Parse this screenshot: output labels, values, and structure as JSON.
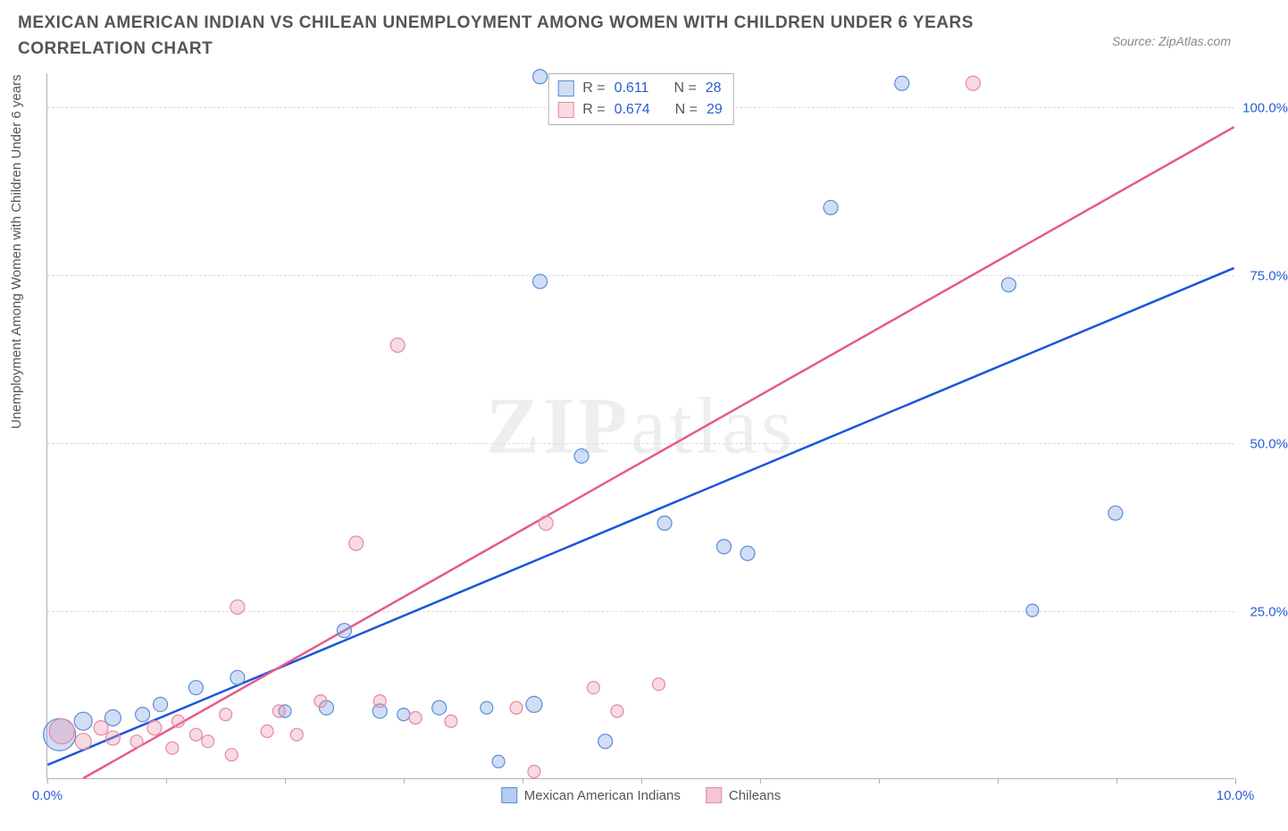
{
  "title": "MEXICAN AMERICAN INDIAN VS CHILEAN UNEMPLOYMENT AMONG WOMEN WITH CHILDREN UNDER 6 YEARS CORRELATION CHART",
  "source": "Source: ZipAtlas.com",
  "y_axis_label": "Unemployment Among Women with Children Under 6 years",
  "watermark_bold": "ZIP",
  "watermark_light": "atlas",
  "chart": {
    "type": "scatter",
    "background_color": "#ffffff",
    "grid_color": "#dcdcdc",
    "axis_color": "#b0b0b0",
    "tick_label_color": "#2b5cd6",
    "xlim": [
      0,
      10
    ],
    "ylim": [
      0,
      105
    ],
    "x_ticks": [
      0,
      1,
      2,
      3,
      4,
      5,
      6,
      7,
      8,
      9,
      10
    ],
    "x_tick_labels": {
      "0": "0.0%",
      "10": "10.0%"
    },
    "y_ticks": [
      25,
      50,
      75,
      100
    ],
    "y_tick_labels": {
      "25": "25.0%",
      "50": "50.0%",
      "75": "75.0%",
      "100": "100.0%"
    },
    "title_fontsize": 19,
    "label_fontsize": 15
  },
  "series": [
    {
      "name": "Mexican American Indians",
      "color_fill": "rgba(120,160,225,0.35)",
      "color_stroke": "#5b8dd6",
      "marker_stroke_width": 1.2,
      "trend_color": "#1a56db",
      "trend_width": 2.5,
      "trend_dash_color": "#1a56db",
      "R": "0.611",
      "N": "28",
      "regression": {
        "slope": 7.4,
        "intercept": 2.0
      },
      "points": [
        {
          "x": 0.1,
          "y": 6.5,
          "r": 18
        },
        {
          "x": 0.3,
          "y": 8.5,
          "r": 10
        },
        {
          "x": 0.55,
          "y": 9.0,
          "r": 9
        },
        {
          "x": 0.8,
          "y": 9.5,
          "r": 8
        },
        {
          "x": 0.95,
          "y": 11.0,
          "r": 8
        },
        {
          "x": 1.25,
          "y": 13.5,
          "r": 8
        },
        {
          "x": 1.6,
          "y": 15.0,
          "r": 8
        },
        {
          "x": 2.0,
          "y": 10.0,
          "r": 7
        },
        {
          "x": 2.35,
          "y": 10.5,
          "r": 8
        },
        {
          "x": 2.5,
          "y": 22.0,
          "r": 8
        },
        {
          "x": 2.8,
          "y": 10.0,
          "r": 8
        },
        {
          "x": 3.0,
          "y": 9.5,
          "r": 7
        },
        {
          "x": 3.3,
          "y": 10.5,
          "r": 8
        },
        {
          "x": 3.7,
          "y": 10.5,
          "r": 7
        },
        {
          "x": 3.8,
          "y": 2.5,
          "r": 7
        },
        {
          "x": 4.1,
          "y": 11.0,
          "r": 9
        },
        {
          "x": 4.15,
          "y": 74.0,
          "r": 8
        },
        {
          "x": 4.15,
          "y": 104.5,
          "r": 8
        },
        {
          "x": 4.5,
          "y": 48.0,
          "r": 8
        },
        {
          "x": 4.7,
          "y": 5.5,
          "r": 8
        },
        {
          "x": 5.2,
          "y": 38.0,
          "r": 8
        },
        {
          "x": 5.7,
          "y": 34.5,
          "r": 8
        },
        {
          "x": 5.9,
          "y": 33.5,
          "r": 8
        },
        {
          "x": 6.6,
          "y": 85.0,
          "r": 8
        },
        {
          "x": 7.2,
          "y": 103.5,
          "r": 8
        },
        {
          "x": 8.1,
          "y": 73.5,
          "r": 8
        },
        {
          "x": 8.3,
          "y": 25.0,
          "r": 7
        },
        {
          "x": 9.0,
          "y": 39.5,
          "r": 8
        }
      ]
    },
    {
      "name": "Chileans",
      "color_fill": "rgba(235,150,175,0.35)",
      "color_stroke": "#e389a5",
      "marker_stroke_width": 1.2,
      "trend_color": "#e75a8a",
      "trend_width": 2.5,
      "trend_dash_color": "#f2a5bd",
      "R": "0.674",
      "N": "29",
      "regression": {
        "slope": 10.0,
        "intercept": -3.0
      },
      "points": [
        {
          "x": 0.12,
          "y": 7.0,
          "r": 14
        },
        {
          "x": 0.3,
          "y": 5.5,
          "r": 9
        },
        {
          "x": 0.45,
          "y": 7.5,
          "r": 8
        },
        {
          "x": 0.55,
          "y": 6.0,
          "r": 8
        },
        {
          "x": 0.75,
          "y": 5.5,
          "r": 7
        },
        {
          "x": 0.9,
          "y": 7.5,
          "r": 8
        },
        {
          "x": 1.05,
          "y": 4.5,
          "r": 7
        },
        {
          "x": 1.1,
          "y": 8.5,
          "r": 7
        },
        {
          "x": 1.25,
          "y": 6.5,
          "r": 7
        },
        {
          "x": 1.35,
          "y": 5.5,
          "r": 7
        },
        {
          "x": 1.5,
          "y": 9.5,
          "r": 7
        },
        {
          "x": 1.55,
          "y": 3.5,
          "r": 7
        },
        {
          "x": 1.6,
          "y": 25.5,
          "r": 8
        },
        {
          "x": 1.85,
          "y": 7.0,
          "r": 7
        },
        {
          "x": 1.95,
          "y": 10.0,
          "r": 7
        },
        {
          "x": 2.1,
          "y": 6.5,
          "r": 7
        },
        {
          "x": 2.3,
          "y": 11.5,
          "r": 7
        },
        {
          "x": 2.6,
          "y": 35.0,
          "r": 8
        },
        {
          "x": 2.8,
          "y": 11.5,
          "r": 7
        },
        {
          "x": 2.95,
          "y": 64.5,
          "r": 8
        },
        {
          "x": 3.1,
          "y": 9.0,
          "r": 7
        },
        {
          "x": 3.4,
          "y": 8.5,
          "r": 7
        },
        {
          "x": 3.95,
          "y": 10.5,
          "r": 7
        },
        {
          "x": 4.1,
          "y": 1.0,
          "r": 7
        },
        {
          "x": 4.2,
          "y": 38.0,
          "r": 8
        },
        {
          "x": 4.6,
          "y": 13.5,
          "r": 7
        },
        {
          "x": 4.8,
          "y": 10.0,
          "r": 7
        },
        {
          "x": 5.15,
          "y": 14.0,
          "r": 7
        },
        {
          "x": 7.8,
          "y": 103.5,
          "r": 8
        }
      ]
    }
  ],
  "legend_top_labels": {
    "R": "R =",
    "N": "N ="
  },
  "legend_bottom": [
    {
      "label": "Mexican American Indians",
      "fill": "rgba(120,160,225,0.55)",
      "stroke": "#5b8dd6"
    },
    {
      "label": "Chileans",
      "fill": "rgba(235,150,175,0.55)",
      "stroke": "#e389a5"
    }
  ]
}
